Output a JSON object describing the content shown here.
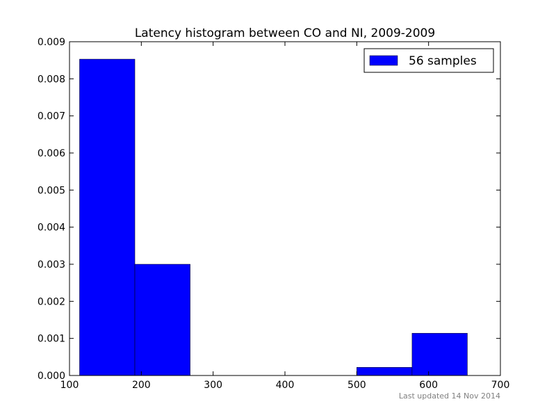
{
  "chart_data": {
    "type": "bar",
    "title": "Latency histogram between CO and NI, 2009-2009",
    "xlabel": "",
    "ylabel": "",
    "xlim": [
      100,
      700
    ],
    "ylim": [
      0,
      0.009
    ],
    "x_ticks": [
      "100",
      "200",
      "300",
      "400",
      "500",
      "600",
      "700"
    ],
    "y_ticks": [
      "0.000",
      "0.001",
      "0.002",
      "0.003",
      "0.004",
      "0.005",
      "0.006",
      "0.007",
      "0.008",
      "0.009"
    ],
    "bins": [
      {
        "start": 114,
        "end": 191,
        "value": 0.00853
      },
      {
        "start": 191,
        "end": 268,
        "value": 0.003
      },
      {
        "start": 268,
        "end": 345,
        "value": 0
      },
      {
        "start": 345,
        "end": 422,
        "value": 0
      },
      {
        "start": 422,
        "end": 500,
        "value": 0
      },
      {
        "start": 500,
        "end": 577,
        "value": 0.00022
      },
      {
        "start": 577,
        "end": 654,
        "value": 0.00114
      }
    ],
    "series": [
      {
        "name": "56 samples",
        "color": "#0000ff"
      }
    ],
    "legend": "top-right",
    "grid": false
  },
  "footer": {
    "updated": "Last updated 14 Nov 2014"
  }
}
